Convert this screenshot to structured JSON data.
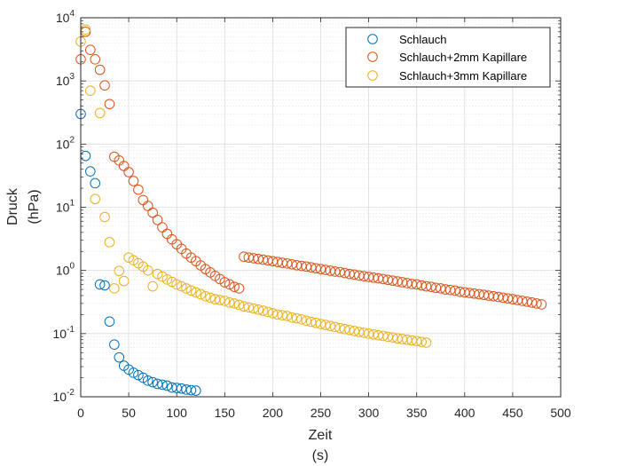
{
  "chart_data": {
    "type": "scatter",
    "marker": "open-circle",
    "x_scale": "linear",
    "y_scale": "log",
    "xlim": [
      0,
      500
    ],
    "ylim": [
      0.01,
      10000
    ],
    "grid": true,
    "minor_grid": true,
    "legend_position": "top-right",
    "x_ticks": [
      0,
      50,
      100,
      150,
      200,
      250,
      300,
      350,
      400,
      450,
      500
    ],
    "x_tick_labels": [
      "0",
      "50",
      "100",
      "150",
      "200",
      "250",
      "300",
      "350",
      "400",
      "450",
      "500"
    ],
    "y_ticks": [
      0.01,
      0.1,
      1,
      10,
      100,
      1000,
      10000
    ],
    "y_tick_labels": [
      {
        "base": "10",
        "exp": "-2"
      },
      {
        "base": "10",
        "exp": "-1"
      },
      {
        "base": "10",
        "exp": "0"
      },
      {
        "base": "10",
        "exp": "1"
      },
      {
        "base": "10",
        "exp": "2"
      },
      {
        "base": "10",
        "exp": "3"
      },
      {
        "base": "10",
        "exp": "4"
      }
    ],
    "xlabel": [
      "Zeit",
      "(s)"
    ],
    "ylabel": [
      "Druck",
      "(hPa)"
    ],
    "series": [
      {
        "name": "Schlauch",
        "color": "#0072BD",
        "x": [
          0,
          5,
          10,
          15,
          20,
          25,
          30,
          35,
          40,
          45,
          50,
          55,
          60,
          65,
          70,
          75,
          80,
          85,
          90,
          95,
          100,
          105,
          110,
          115,
          120
        ],
        "y": [
          300,
          65,
          37,
          24,
          0.6,
          0.58,
          0.155,
          0.067,
          0.042,
          0.031,
          0.027,
          0.024,
          0.022,
          0.02,
          0.018,
          0.017,
          0.016,
          0.0155,
          0.015,
          0.014,
          0.0138,
          0.0135,
          0.013,
          0.0127,
          0.0125
        ]
      },
      {
        "name": "Schlauch+2mm Kapillare",
        "color": "#D95319",
        "x": [
          0,
          5,
          10,
          15,
          20,
          25,
          30,
          35,
          40,
          45,
          50,
          55,
          60,
          65,
          70,
          75,
          80,
          85,
          90,
          95,
          100,
          105,
          110,
          115,
          120,
          125,
          130,
          135,
          140,
          145,
          150,
          155,
          160,
          165,
          170,
          175,
          180,
          185,
          190,
          195,
          200,
          205,
          210,
          215,
          220,
          225,
          230,
          235,
          240,
          245,
          250,
          255,
          260,
          265,
          270,
          275,
          280,
          285,
          290,
          295,
          300,
          305,
          310,
          315,
          320,
          325,
          330,
          335,
          340,
          345,
          350,
          355,
          360,
          365,
          370,
          375,
          380,
          385,
          390,
          395,
          400,
          405,
          410,
          415,
          420,
          425,
          430,
          435,
          440,
          445,
          450,
          455,
          460,
          465,
          470,
          475,
          480
        ],
        "y": [
          2200,
          6000,
          3100,
          2200,
          1500,
          850,
          430,
          63,
          55,
          45,
          36,
          26,
          19,
          13,
          10.5,
          8.2,
          6.3,
          4.8,
          3.8,
          3.1,
          2.6,
          2.2,
          1.85,
          1.6,
          1.4,
          1.2,
          1.05,
          0.93,
          0.82,
          0.73,
          0.65,
          0.6,
          0.55,
          0.52,
          1.65,
          1.6,
          1.56,
          1.52,
          1.48,
          1.44,
          1.4,
          1.36,
          1.32,
          1.29,
          1.25,
          1.21,
          1.18,
          1.15,
          1.12,
          1.08,
          1.05,
          1.02,
          0.99,
          0.96,
          0.94,
          0.91,
          0.88,
          0.86,
          0.83,
          0.81,
          0.79,
          0.77,
          0.75,
          0.73,
          0.71,
          0.69,
          0.67,
          0.65,
          0.63,
          0.61,
          0.6,
          0.58,
          0.56,
          0.55,
          0.53,
          0.52,
          0.5,
          0.49,
          0.48,
          0.46,
          0.45,
          0.44,
          0.43,
          0.42,
          0.41,
          0.4,
          0.39,
          0.38,
          0.37,
          0.36,
          0.35,
          0.34,
          0.33,
          0.32,
          0.31,
          0.3,
          0.29
        ]
      },
      {
        "name": "Schlauch+3mm Kapillare",
        "color": "#EDB120",
        "x": [
          0,
          5,
          10,
          15,
          20,
          25,
          30,
          35,
          40,
          45,
          50,
          55,
          60,
          65,
          70,
          75,
          80,
          85,
          90,
          95,
          100,
          105,
          110,
          115,
          120,
          125,
          130,
          135,
          140,
          145,
          150,
          155,
          160,
          165,
          170,
          175,
          180,
          185,
          190,
          195,
          200,
          205,
          210,
          215,
          220,
          225,
          230,
          235,
          240,
          245,
          250,
          255,
          260,
          265,
          270,
          275,
          280,
          285,
          290,
          295,
          300,
          305,
          310,
          315,
          320,
          325,
          330,
          335,
          340,
          345,
          350,
          355,
          360
        ],
        "y": [
          4200,
          6500,
          700,
          13.5,
          310,
          7,
          2.8,
          0.52,
          0.98,
          0.68,
          1.6,
          1.45,
          1.3,
          1.15,
          1.0,
          0.56,
          0.88,
          0.8,
          0.72,
          0.66,
          0.6,
          0.56,
          0.52,
          0.48,
          0.45,
          0.42,
          0.39,
          0.37,
          0.35,
          0.34,
          0.33,
          0.31,
          0.3,
          0.285,
          0.27,
          0.26,
          0.25,
          0.24,
          0.23,
          0.22,
          0.21,
          0.2,
          0.195,
          0.19,
          0.18,
          0.175,
          0.168,
          0.16,
          0.154,
          0.148,
          0.142,
          0.137,
          0.132,
          0.127,
          0.122,
          0.118,
          0.114,
          0.11,
          0.106,
          0.103,
          0.1,
          0.097,
          0.094,
          0.092,
          0.089,
          0.087,
          0.084,
          0.082,
          0.08,
          0.078,
          0.076,
          0.074,
          0.072
        ]
      }
    ]
  }
}
